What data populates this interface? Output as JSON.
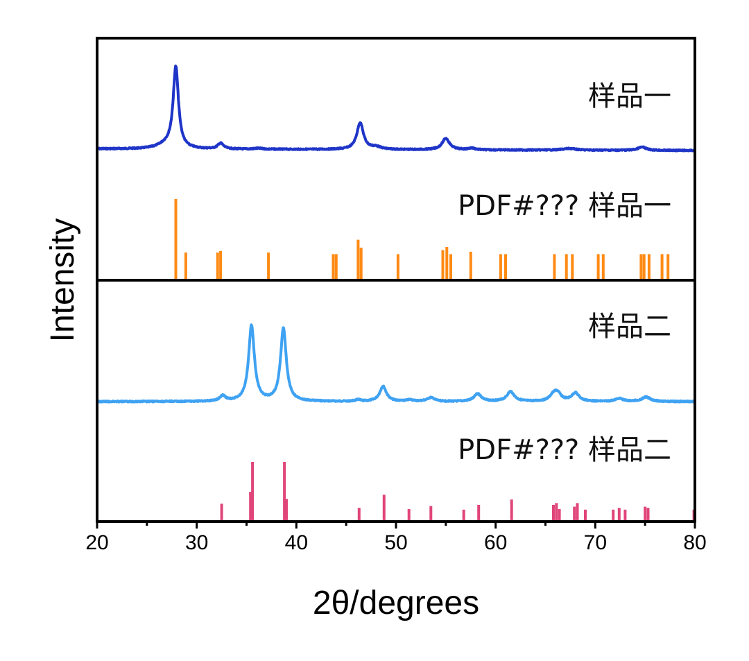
{
  "chart_data": {
    "type": "line",
    "title": "",
    "xlabel": "2θ/degrees",
    "ylabel": "Intensity",
    "xlim": [
      20,
      80
    ],
    "x_ticks": [
      "20",
      "30",
      "40",
      "50",
      "60",
      "70",
      "80"
    ],
    "x_tick_values": [
      20,
      30,
      40,
      50,
      60,
      70,
      80
    ],
    "minor_x_tick_values": [
      25,
      35,
      45,
      55,
      65,
      75
    ],
    "y_ticks_shown": false,
    "panels": [
      {
        "name": "sample-1",
        "label": "样品一",
        "color": "#1f35c8",
        "kind": "pattern",
        "baseline": 0.02,
        "peaks": [
          {
            "x": 27.9,
            "h": 1.0,
            "w": 0.32
          },
          {
            "x": 26.9,
            "h": 0.05,
            "w": 1.0
          },
          {
            "x": 32.4,
            "h": 0.07,
            "w": 0.35
          },
          {
            "x": 36.2,
            "h": 0.01,
            "w": 0.5
          },
          {
            "x": 46.4,
            "h": 0.33,
            "w": 0.4
          },
          {
            "x": 48.0,
            "h": 0.03,
            "w": 0.6
          },
          {
            "x": 55.0,
            "h": 0.14,
            "w": 0.45
          },
          {
            "x": 57.6,
            "h": 0.02,
            "w": 0.4
          },
          {
            "x": 67.4,
            "h": 0.02,
            "w": 0.8
          },
          {
            "x": 74.7,
            "h": 0.04,
            "w": 0.5
          }
        ]
      },
      {
        "name": "reference-1",
        "label": "PDF#??? 样品一",
        "color": "#ff8a14",
        "kind": "sticks",
        "sticks": [
          {
            "x": 27.9,
            "h": 1.0
          },
          {
            "x": 28.9,
            "h": 0.33
          },
          {
            "x": 32.1,
            "h": 0.33
          },
          {
            "x": 32.4,
            "h": 0.35
          },
          {
            "x": 37.2,
            "h": 0.33
          },
          {
            "x": 43.7,
            "h": 0.31
          },
          {
            "x": 44.0,
            "h": 0.31
          },
          {
            "x": 46.2,
            "h": 0.49
          },
          {
            "x": 46.5,
            "h": 0.39
          },
          {
            "x": 50.2,
            "h": 0.31
          },
          {
            "x": 54.7,
            "h": 0.36
          },
          {
            "x": 55.1,
            "h": 0.4
          },
          {
            "x": 55.5,
            "h": 0.31
          },
          {
            "x": 57.5,
            "h": 0.34
          },
          {
            "x": 60.5,
            "h": 0.31
          },
          {
            "x": 61.0,
            "h": 0.31
          },
          {
            "x": 65.9,
            "h": 0.31
          },
          {
            "x": 67.1,
            "h": 0.31
          },
          {
            "x": 67.7,
            "h": 0.31
          },
          {
            "x": 70.3,
            "h": 0.31
          },
          {
            "x": 70.8,
            "h": 0.31
          },
          {
            "x": 74.6,
            "h": 0.31
          },
          {
            "x": 74.9,
            "h": 0.31
          },
          {
            "x": 75.4,
            "h": 0.31
          },
          {
            "x": 76.7,
            "h": 0.31
          },
          {
            "x": 77.3,
            "h": 0.31
          }
        ]
      },
      {
        "name": "sample-2",
        "label": "样品二",
        "color": "#3fa2f2",
        "kind": "pattern",
        "baseline": 0.0,
        "peaks": [
          {
            "x": 32.6,
            "h": 0.07,
            "w": 0.35
          },
          {
            "x": 35.5,
            "h": 1.0,
            "w": 0.35
          },
          {
            "x": 38.7,
            "h": 0.96,
            "w": 0.35
          },
          {
            "x": 46.2,
            "h": 0.02,
            "w": 0.3
          },
          {
            "x": 48.7,
            "h": 0.2,
            "w": 0.4
          },
          {
            "x": 51.4,
            "h": 0.02,
            "w": 0.4
          },
          {
            "x": 53.5,
            "h": 0.05,
            "w": 0.45
          },
          {
            "x": 58.2,
            "h": 0.1,
            "w": 0.45
          },
          {
            "x": 61.5,
            "h": 0.13,
            "w": 0.45
          },
          {
            "x": 65.8,
            "h": 0.07,
            "w": 0.45
          },
          {
            "x": 66.2,
            "h": 0.1,
            "w": 0.45
          },
          {
            "x": 68.0,
            "h": 0.11,
            "w": 0.45
          },
          {
            "x": 72.4,
            "h": 0.04,
            "w": 0.45
          },
          {
            "x": 75.1,
            "h": 0.06,
            "w": 0.5
          }
        ]
      },
      {
        "name": "reference-2",
        "label": "PDF#??? 样品二",
        "color": "#e0457a",
        "kind": "sticks",
        "sticks": [
          {
            "x": 32.5,
            "h": 0.3
          },
          {
            "x": 35.4,
            "h": 0.5
          },
          {
            "x": 35.6,
            "h": 1.0
          },
          {
            "x": 38.8,
            "h": 1.0
          },
          {
            "x": 39.0,
            "h": 0.38
          },
          {
            "x": 46.3,
            "h": 0.23
          },
          {
            "x": 48.8,
            "h": 0.45
          },
          {
            "x": 51.3,
            "h": 0.21
          },
          {
            "x": 53.5,
            "h": 0.26
          },
          {
            "x": 56.8,
            "h": 0.2
          },
          {
            "x": 58.3,
            "h": 0.28
          },
          {
            "x": 61.6,
            "h": 0.37
          },
          {
            "x": 65.8,
            "h": 0.28
          },
          {
            "x": 66.1,
            "h": 0.31
          },
          {
            "x": 66.4,
            "h": 0.21
          },
          {
            "x": 67.9,
            "h": 0.25
          },
          {
            "x": 68.2,
            "h": 0.31
          },
          {
            "x": 69.0,
            "h": 0.2
          },
          {
            "x": 71.8,
            "h": 0.2
          },
          {
            "x": 72.4,
            "h": 0.23
          },
          {
            "x": 73.0,
            "h": 0.2
          },
          {
            "x": 75.0,
            "h": 0.25
          },
          {
            "x": 75.3,
            "h": 0.23
          },
          {
            "x": 79.9,
            "h": 0.2
          }
        ]
      }
    ]
  }
}
